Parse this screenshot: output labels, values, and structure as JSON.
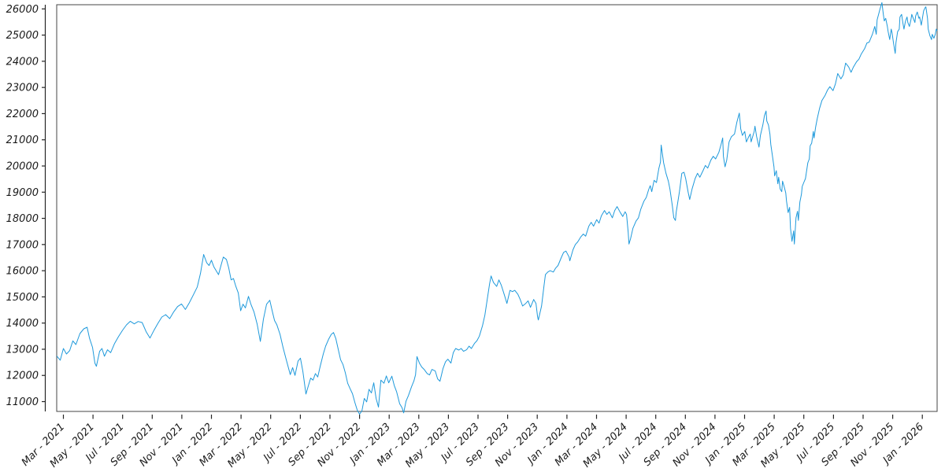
{
  "chart_data": {
    "type": "line",
    "title": "",
    "legend": false,
    "grid": false,
    "colors": {
      "line": "#1e99db",
      "axis_text": "#1a1a1a",
      "spine": "#262626",
      "frame": "#444444",
      "background": "#ffffff"
    },
    "x_axis": {
      "unit": "months since 2021-03-01",
      "range_months": [
        -0.45,
        59.0
      ],
      "tick_months": [
        0,
        2,
        4,
        6,
        8,
        10,
        12,
        14,
        16,
        18,
        20,
        22,
        24,
        26,
        28,
        30,
        32,
        34,
        36,
        38,
        40,
        42,
        44,
        46,
        48,
        50,
        52,
        54,
        56,
        58
      ],
      "tick_labels": [
        "Mar - 2021",
        "May - 2021",
        "Jul - 2021",
        "Sep - 2021",
        "Nov - 2021",
        "Jan - 2022",
        "Mar - 2022",
        "May - 2022",
        "Jul - 2022",
        "Sep - 2022",
        "Nov - 2022",
        "Jan - 2023",
        "Mar - 2023",
        "May - 2023",
        "Jul - 2023",
        "Sep - 2023",
        "Nov - 2023",
        "Jan - 2024",
        "Mar - 2024",
        "May - 2024",
        "Jul - 2024",
        "Sep - 2024",
        "Nov - 2024",
        "Jan - 2025",
        "Mar - 2025",
        "May - 2025",
        "Jul - 2025",
        "Sep - 2025",
        "Nov - 2025",
        "Jan - 2026"
      ],
      "label_rotation_deg": 45
    },
    "y_axis": {
      "range": [
        10625,
        26160
      ],
      "ticks": [
        11000,
        12000,
        13000,
        14000,
        15000,
        16000,
        17000,
        18000,
        19000,
        20000,
        21000,
        22000,
        23000,
        24000,
        25000,
        26000
      ]
    },
    "points": [
      [
        -0.43,
        12730
      ],
      [
        -0.21,
        12580
      ],
      [
        0,
        13030
      ],
      [
        0.21,
        12820
      ],
      [
        0.43,
        12950
      ],
      [
        0.64,
        13320
      ],
      [
        0.85,
        13180
      ],
      [
        1.12,
        13600
      ],
      [
        1.38,
        13780
      ],
      [
        1.6,
        13840
      ],
      [
        1.76,
        13430
      ],
      [
        1.97,
        13070
      ],
      [
        2.13,
        12470
      ],
      [
        2.23,
        12350
      ],
      [
        2.45,
        12920
      ],
      [
        2.61,
        13030
      ],
      [
        2.77,
        12730
      ],
      [
        2.98,
        12980
      ],
      [
        3.19,
        12870
      ],
      [
        3.46,
        13220
      ],
      [
        3.72,
        13480
      ],
      [
        3.99,
        13720
      ],
      [
        4.26,
        13930
      ],
      [
        4.52,
        14070
      ],
      [
        4.79,
        13970
      ],
      [
        5.05,
        14060
      ],
      [
        5.32,
        14020
      ],
      [
        5.59,
        13670
      ],
      [
        5.85,
        13430
      ],
      [
        6.12,
        13730
      ],
      [
        6.38,
        13980
      ],
      [
        6.65,
        14230
      ],
      [
        6.91,
        14320
      ],
      [
        7.18,
        14170
      ],
      [
        7.45,
        14430
      ],
      [
        7.71,
        14630
      ],
      [
        7.98,
        14730
      ],
      [
        8.24,
        14520
      ],
      [
        8.51,
        14780
      ],
      [
        8.78,
        15080
      ],
      [
        9.04,
        15380
      ],
      [
        9.26,
        15900
      ],
      [
        9.47,
        16620
      ],
      [
        9.68,
        16300
      ],
      [
        9.84,
        16200
      ],
      [
        10,
        16400
      ],
      [
        10.16,
        16150
      ],
      [
        10.32,
        16000
      ],
      [
        10.48,
        15850
      ],
      [
        10.64,
        16200
      ],
      [
        10.8,
        16520
      ],
      [
        11.01,
        16430
      ],
      [
        11.17,
        16100
      ],
      [
        11.33,
        15650
      ],
      [
        11.49,
        15700
      ],
      [
        11.65,
        15400
      ],
      [
        11.81,
        15150
      ],
      [
        11.97,
        14470
      ],
      [
        12.13,
        14720
      ],
      [
        12.29,
        14580
      ],
      [
        12.5,
        15020
      ],
      [
        12.66,
        14730
      ],
      [
        12.87,
        14430
      ],
      [
        13.09,
        13950
      ],
      [
        13.3,
        13300
      ],
      [
        13.51,
        14150
      ],
      [
        13.72,
        14720
      ],
      [
        13.94,
        14870
      ],
      [
        14.1,
        14470
      ],
      [
        14.26,
        14100
      ],
      [
        14.41,
        13940
      ],
      [
        14.63,
        13570
      ],
      [
        14.84,
        13060
      ],
      [
        15.05,
        12600
      ],
      [
        15.32,
        12030
      ],
      [
        15.48,
        12300
      ],
      [
        15.64,
        12000
      ],
      [
        15.85,
        12550
      ],
      [
        16.01,
        12660
      ],
      [
        16.17,
        12150
      ],
      [
        16.38,
        11290
      ],
      [
        16.54,
        11600
      ],
      [
        16.7,
        11900
      ],
      [
        16.86,
        11820
      ],
      [
        17.02,
        12070
      ],
      [
        17.18,
        11940
      ],
      [
        17.34,
        12350
      ],
      [
        17.55,
        12820
      ],
      [
        17.71,
        13120
      ],
      [
        17.93,
        13400
      ],
      [
        18.09,
        13570
      ],
      [
        18.24,
        13640
      ],
      [
        18.4,
        13400
      ],
      [
        18.56,
        13000
      ],
      [
        18.72,
        12600
      ],
      [
        18.88,
        12420
      ],
      [
        19.04,
        12100
      ],
      [
        19.2,
        11700
      ],
      [
        19.36,
        11500
      ],
      [
        19.52,
        11300
      ],
      [
        19.68,
        10970
      ],
      [
        19.84,
        10680
      ],
      [
        20,
        10520
      ],
      [
        20.16,
        10650
      ],
      [
        20.32,
        11120
      ],
      [
        20.48,
        10990
      ],
      [
        20.64,
        11470
      ],
      [
        20.8,
        11330
      ],
      [
        20.96,
        11720
      ],
      [
        21.12,
        11120
      ],
      [
        21.28,
        10790
      ],
      [
        21.44,
        11820
      ],
      [
        21.65,
        11700
      ],
      [
        21.81,
        11980
      ],
      [
        21.97,
        11720
      ],
      [
        22.18,
        11970
      ],
      [
        22.34,
        11620
      ],
      [
        22.5,
        11380
      ],
      [
        22.71,
        10920
      ],
      [
        22.87,
        10770
      ],
      [
        22.98,
        10570
      ],
      [
        23.14,
        11020
      ],
      [
        23.3,
        11230
      ],
      [
        23.51,
        11570
      ],
      [
        23.67,
        11790
      ],
      [
        23.78,
        12030
      ],
      [
        23.88,
        12720
      ],
      [
        24.04,
        12470
      ],
      [
        24.2,
        12320
      ],
      [
        24.36,
        12230
      ],
      [
        24.57,
        12070
      ],
      [
        24.73,
        12020
      ],
      [
        24.89,
        12230
      ],
      [
        25.11,
        12170
      ],
      [
        25.27,
        11870
      ],
      [
        25.43,
        11780
      ],
      [
        25.64,
        12270
      ],
      [
        25.8,
        12520
      ],
      [
        25.96,
        12620
      ],
      [
        26.17,
        12470
      ],
      [
        26.33,
        12870
      ],
      [
        26.49,
        13030
      ],
      [
        26.7,
        12970
      ],
      [
        26.86,
        13030
      ],
      [
        27.02,
        12920
      ],
      [
        27.23,
        12980
      ],
      [
        27.39,
        13120
      ],
      [
        27.55,
        13030
      ],
      [
        27.77,
        13230
      ],
      [
        27.93,
        13330
      ],
      [
        28.09,
        13500
      ],
      [
        28.3,
        13900
      ],
      [
        28.46,
        14300
      ],
      [
        28.62,
        14900
      ],
      [
        28.78,
        15500
      ],
      [
        28.88,
        15800
      ],
      [
        29.04,
        15550
      ],
      [
        29.26,
        15400
      ],
      [
        29.41,
        15650
      ],
      [
        29.57,
        15450
      ],
      [
        29.79,
        15050
      ],
      [
        29.95,
        14750
      ],
      [
        30.16,
        15250
      ],
      [
        30.32,
        15200
      ],
      [
        30.48,
        15250
      ],
      [
        30.69,
        15100
      ],
      [
        30.85,
        14900
      ],
      [
        31.01,
        14650
      ],
      [
        31.22,
        14750
      ],
      [
        31.38,
        14850
      ],
      [
        31.54,
        14600
      ],
      [
        31.76,
        14900
      ],
      [
        31.91,
        14750
      ],
      [
        32.02,
        14250
      ],
      [
        32.07,
        14120
      ],
      [
        32.29,
        14650
      ],
      [
        32.45,
        15400
      ],
      [
        32.55,
        15850
      ],
      [
        32.71,
        15950
      ],
      [
        32.87,
        16000
      ],
      [
        33.09,
        15950
      ],
      [
        33.24,
        16100
      ],
      [
        33.4,
        16200
      ],
      [
        33.62,
        16500
      ],
      [
        33.78,
        16700
      ],
      [
        33.94,
        16750
      ],
      [
        34.15,
        16520
      ],
      [
        34.2,
        16380
      ],
      [
        34.41,
        16800
      ],
      [
        34.57,
        17000
      ],
      [
        34.73,
        17100
      ],
      [
        34.95,
        17300
      ],
      [
        35.11,
        17400
      ],
      [
        35.27,
        17320
      ],
      [
        35.48,
        17700
      ],
      [
        35.64,
        17850
      ],
      [
        35.8,
        17700
      ],
      [
        36.01,
        17950
      ],
      [
        36.17,
        17820
      ],
      [
        36.33,
        18100
      ],
      [
        36.54,
        18300
      ],
      [
        36.7,
        18150
      ],
      [
        36.86,
        18250
      ],
      [
        37.07,
        18020
      ],
      [
        37.23,
        18300
      ],
      [
        37.39,
        18450
      ],
      [
        37.61,
        18220
      ],
      [
        37.77,
        18070
      ],
      [
        37.93,
        18250
      ],
      [
        38.03,
        18150
      ],
      [
        38.14,
        17470
      ],
      [
        38.19,
        17020
      ],
      [
        38.3,
        17220
      ],
      [
        38.46,
        17620
      ],
      [
        38.67,
        17900
      ],
      [
        38.83,
        18020
      ],
      [
        38.99,
        18350
      ],
      [
        39.2,
        18650
      ],
      [
        39.36,
        18800
      ],
      [
        39.52,
        19100
      ],
      [
        39.63,
        19250
      ],
      [
        39.73,
        19020
      ],
      [
        39.89,
        19450
      ],
      [
        40.05,
        19370
      ],
      [
        40.21,
        19900
      ],
      [
        40.32,
        20150
      ],
      [
        40.37,
        20800
      ],
      [
        40.53,
        20120
      ],
      [
        40.69,
        19720
      ],
      [
        40.85,
        19420
      ],
      [
        40.96,
        19120
      ],
      [
        41.12,
        18470
      ],
      [
        41.22,
        18020
      ],
      [
        41.33,
        17920
      ],
      [
        41.38,
        18220
      ],
      [
        41.6,
        19020
      ],
      [
        41.76,
        19720
      ],
      [
        41.91,
        19760
      ],
      [
        42.02,
        19520
      ],
      [
        42.18,
        19020
      ],
      [
        42.29,
        18720
      ],
      [
        42.45,
        19120
      ],
      [
        42.66,
        19520
      ],
      [
        42.82,
        19720
      ],
      [
        42.98,
        19570
      ],
      [
        43.19,
        19820
      ],
      [
        43.35,
        20020
      ],
      [
        43.51,
        19920
      ],
      [
        43.72,
        20220
      ],
      [
        43.88,
        20370
      ],
      [
        44.04,
        20270
      ],
      [
        44.26,
        20520
      ],
      [
        44.41,
        20820
      ],
      [
        44.52,
        21070
      ],
      [
        44.57,
        20370
      ],
      [
        44.68,
        19970
      ],
      [
        44.79,
        20220
      ],
      [
        44.95,
        20920
      ],
      [
        45.11,
        21120
      ],
      [
        45.32,
        21220
      ],
      [
        45.48,
        21670
      ],
      [
        45.64,
        22020
      ],
      [
        45.74,
        21420
      ],
      [
        45.85,
        21170
      ],
      [
        46.01,
        21320
      ],
      [
        46.12,
        20920
      ],
      [
        46.28,
        21120
      ],
      [
        46.38,
        21220
      ],
      [
        46.44,
        20920
      ],
      [
        46.65,
        21320
      ],
      [
        46.7,
        21520
      ],
      [
        46.81,
        21120
      ],
      [
        46.97,
        20720
      ],
      [
        47.07,
        21170
      ],
      [
        47.23,
        21570
      ],
      [
        47.34,
        21920
      ],
      [
        47.45,
        22100
      ],
      [
        47.5,
        21720
      ],
      [
        47.61,
        21570
      ],
      [
        47.71,
        21220
      ],
      [
        47.77,
        20820
      ],
      [
        47.87,
        20420
      ],
      [
        47.98,
        19970
      ],
      [
        48.03,
        19620
      ],
      [
        48.14,
        19820
      ],
      [
        48.24,
        19320
      ],
      [
        48.3,
        19570
      ],
      [
        48.4,
        19120
      ],
      [
        48.51,
        19020
      ],
      [
        48.56,
        19420
      ],
      [
        48.67,
        19220
      ],
      [
        48.78,
        18970
      ],
      [
        48.83,
        18670
      ],
      [
        48.94,
        18220
      ],
      [
        49.04,
        18420
      ],
      [
        49.1,
        17620
      ],
      [
        49.2,
        17120
      ],
      [
        49.31,
        17520
      ],
      [
        49.36,
        17020
      ],
      [
        49.47,
        18020
      ],
      [
        49.57,
        18270
      ],
      [
        49.63,
        17920
      ],
      [
        49.73,
        18620
      ],
      [
        49.84,
        18920
      ],
      [
        49.89,
        19220
      ],
      [
        50,
        19370
      ],
      [
        50.11,
        19520
      ],
      [
        50.16,
        19720
      ],
      [
        50.27,
        20120
      ],
      [
        50.37,
        20270
      ],
      [
        50.43,
        20770
      ],
      [
        50.53,
        20870
      ],
      [
        50.64,
        21320
      ],
      [
        50.69,
        21070
      ],
      [
        50.8,
        21500
      ],
      [
        50.9,
        21800
      ],
      [
        51.06,
        22200
      ],
      [
        51.22,
        22500
      ],
      [
        51.44,
        22700
      ],
      [
        51.6,
        22900
      ],
      [
        51.76,
        23030
      ],
      [
        51.97,
        22880
      ],
      [
        52.13,
        23130
      ],
      [
        52.29,
        23530
      ],
      [
        52.5,
        23330
      ],
      [
        52.66,
        23480
      ],
      [
        52.82,
        23930
      ],
      [
        53.03,
        23780
      ],
      [
        53.19,
        23580
      ],
      [
        53.35,
        23780
      ],
      [
        53.56,
        23980
      ],
      [
        53.72,
        24080
      ],
      [
        53.88,
        24280
      ],
      [
        54.1,
        24480
      ],
      [
        54.26,
        24700
      ],
      [
        54.41,
        24730
      ],
      [
        54.63,
        25030
      ],
      [
        54.79,
        25330
      ],
      [
        54.89,
        25030
      ],
      [
        54.95,
        25580
      ],
      [
        55.16,
        26030
      ],
      [
        55.27,
        26240
      ],
      [
        55.37,
        25790
      ],
      [
        55.43,
        25540
      ],
      [
        55.53,
        25640
      ],
      [
        55.64,
        25330
      ],
      [
        55.69,
        25130
      ],
      [
        55.8,
        24830
      ],
      [
        55.9,
        25230
      ],
      [
        55.96,
        25080
      ],
      [
        56.06,
        24680
      ],
      [
        56.17,
        24300
      ],
      [
        56.22,
        24700
      ],
      [
        56.33,
        25130
      ],
      [
        56.44,
        25230
      ],
      [
        56.49,
        25690
      ],
      [
        56.6,
        25790
      ],
      [
        56.7,
        25430
      ],
      [
        56.76,
        25230
      ],
      [
        56.86,
        25530
      ],
      [
        56.97,
        25690
      ],
      [
        57.02,
        25480
      ],
      [
        57.13,
        25330
      ],
      [
        57.23,
        25580
      ],
      [
        57.29,
        25790
      ],
      [
        57.39,
        25640
      ],
      [
        57.5,
        25480
      ],
      [
        57.55,
        25730
      ],
      [
        57.66,
        25880
      ],
      [
        57.77,
        25640
      ],
      [
        57.82,
        25690
      ],
      [
        57.93,
        25380
      ],
      [
        58.03,
        25730
      ],
      [
        58.09,
        25930
      ],
      [
        58.19,
        26050
      ],
      [
        58.24,
        26080
      ],
      [
        58.35,
        25640
      ],
      [
        58.4,
        25230
      ],
      [
        58.51,
        24980
      ],
      [
        58.62,
        24830
      ],
      [
        58.67,
        25030
      ],
      [
        58.78,
        24880
      ],
      [
        58.88,
        25030
      ],
      [
        58.94,
        25230
      ],
      [
        58.99,
        25180
      ]
    ]
  }
}
